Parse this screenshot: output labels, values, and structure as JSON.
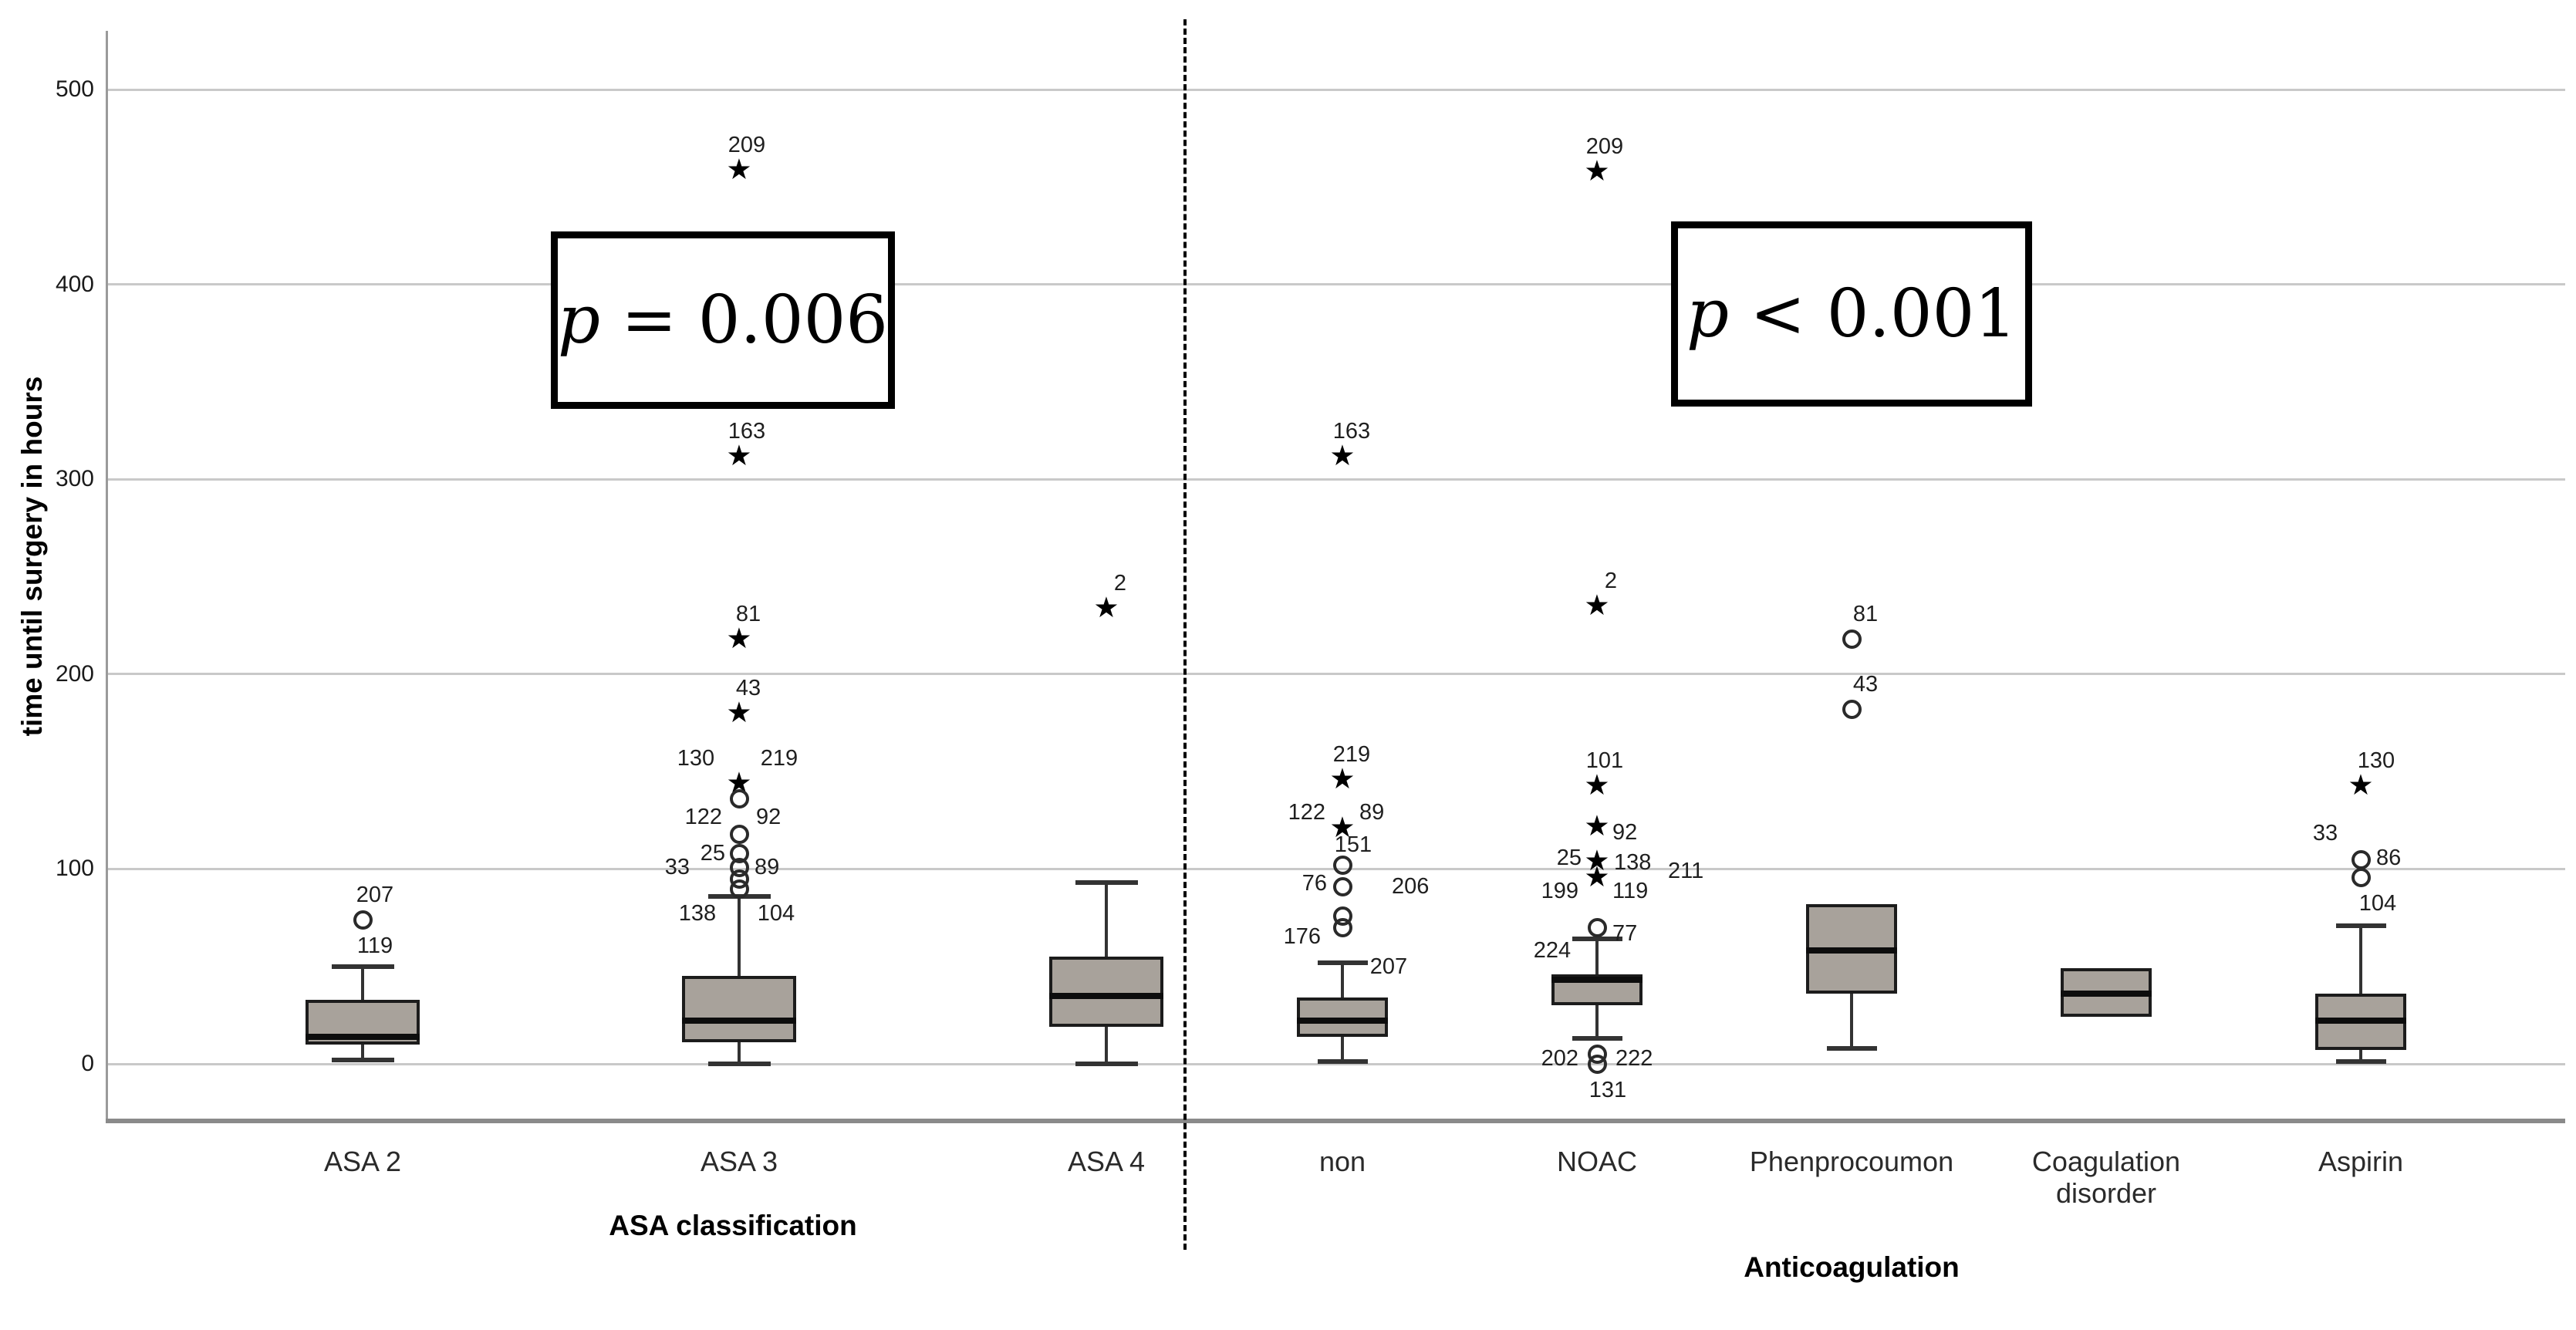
{
  "chart_data": {
    "type": "boxplot",
    "title": "",
    "ylabel": "time until surgery in hours",
    "y_ticks": [
      0,
      100,
      200,
      300,
      400,
      500
    ],
    "ylim": [
      -30,
      530
    ],
    "grid": "horizontal",
    "colors": {
      "box_fill": "#a8a29b",
      "gridline": "#c9c9c9",
      "marker": "#000000"
    },
    "panels": [
      {
        "axis_label": "ASA classification",
        "p_label": "p = 0.006",
        "categories": [
          {
            "label": "ASA 2",
            "box": {
              "whisker_low": 2,
              "q1": 10,
              "median": 14,
              "q3": 33,
              "whisker_high": 50
            },
            "outliers": [
              {
                "value": 74,
                "marker": "circle",
                "labels": [
                  {
                    "text": "207",
                    "pos": "above",
                    "dx": 16
                  },
                  {
                    "text": "119",
                    "pos": "below",
                    "dx": 16
                  }
                ]
              }
            ],
            "extra_labels": []
          },
          {
            "label": "ASA 3",
            "box": {
              "whisker_low": 0,
              "q1": 11,
              "median": 22,
              "q3": 45,
              "whisker_high": 86
            },
            "outliers": [
              {
                "value": 459,
                "marker": "star",
                "labels": [
                  {
                    "text": "209",
                    "pos": "above",
                    "dx": 10
                  }
                ]
              },
              {
                "value": 312,
                "marker": "star",
                "labels": [
                  {
                    "text": "163",
                    "pos": "above",
                    "dx": 10
                  }
                ]
              },
              {
                "value": 218,
                "marker": "star",
                "labels": [
                  {
                    "text": "81",
                    "pos": "above",
                    "dx": 12
                  }
                ]
              },
              {
                "value": 180,
                "marker": "star",
                "labels": [
                  {
                    "text": "43",
                    "pos": "above",
                    "dx": 12
                  }
                ]
              },
              {
                "value": 144,
                "marker": "star",
                "labels": [
                  {
                    "text": "130",
                    "pos": "above",
                    "dx": -56
                  },
                  {
                    "text": "219",
                    "pos": "above",
                    "dx": 52
                  }
                ]
              },
              {
                "value": 136,
                "marker": "circle",
                "labels": []
              },
              {
                "value": 118,
                "marker": "circle",
                "labels": [
                  {
                    "text": "122",
                    "pos": "left",
                    "dx": -2,
                    "dy": -22
                  },
                  {
                    "text": "92",
                    "pos": "right",
                    "dx": 2,
                    "dy": -22
                  }
                ]
              },
              {
                "value": 108,
                "marker": "circle",
                "labels": [
                  {
                    "text": "25",
                    "pos": "left",
                    "dx": 2
                  }
                ]
              },
              {
                "value": 101,
                "marker": "circle",
                "labels": [
                  {
                    "text": "33",
                    "pos": "left",
                    "dx": -44
                  },
                  {
                    "text": "89",
                    "pos": "right",
                    "dx": 0
                  }
                ]
              },
              {
                "value": 95,
                "marker": "circle",
                "labels": []
              },
              {
                "value": 90,
                "marker": "circle",
                "labels": []
              }
            ],
            "extra_labels": [
              {
                "text": "138",
                "value": 77,
                "dx": -54
              },
              {
                "text": "104",
                "value": 77,
                "dx": 48
              }
            ]
          },
          {
            "label": "ASA 4",
            "box": {
              "whisker_low": 0,
              "q1": 19,
              "median": 35,
              "q3": 55,
              "whisker_high": 93
            },
            "outliers": [
              {
                "value": 234,
                "marker": "star",
                "labels": [
                  {
                    "text": "2",
                    "pos": "above",
                    "dx": 18
                  }
                ]
              }
            ],
            "extra_labels": []
          }
        ]
      },
      {
        "axis_label": "Anticoagulation",
        "p_label": "p < 0.001",
        "categories": [
          {
            "label": "non",
            "box": {
              "whisker_low": 1,
              "q1": 14,
              "median": 22,
              "q3": 34,
              "whisker_high": 52
            },
            "outliers": [
              {
                "value": 312,
                "marker": "star",
                "labels": [
                  {
                    "text": "163",
                    "pos": "above",
                    "dx": 12
                  }
                ]
              },
              {
                "value": 146,
                "marker": "star",
                "labels": [
                  {
                    "text": "219",
                    "pos": "above",
                    "dx": 12
                  }
                ]
              },
              {
                "value": 121,
                "marker": "star",
                "labels": [
                  {
                    "text": "122",
                    "pos": "left",
                    "dx": -2,
                    "dy": -20
                  },
                  {
                    "text": "89",
                    "pos": "right",
                    "dx": 2,
                    "dy": -20
                  }
                ]
              },
              {
                "value": 102,
                "marker": "circle",
                "labels": [
                  {
                    "text": "151",
                    "pos": "above",
                    "dx": 14,
                    "dy": 6
                  }
                ]
              },
              {
                "value": 91,
                "marker": "circle",
                "labels": [
                  {
                    "text": "76",
                    "pos": "left",
                    "dx": 0,
                    "dy": -4
                  },
                  {
                    "text": "206",
                    "pos": "right",
                    "dx": 44
                  }
                ]
              },
              {
                "value": 76,
                "marker": "circle",
                "labels": []
              },
              {
                "value": 70,
                "marker": "circle",
                "labels": [
                  {
                    "text": "176",
                    "pos": "left",
                    "dx": -8,
                    "dy": 12
                  }
                ]
              }
            ],
            "extra_labels": [
              {
                "text": "207",
                "value": 50,
                "dx": 60
              }
            ]
          },
          {
            "label": "NOAC",
            "box": {
              "whisker_low": 13,
              "q1": 30,
              "median": 43,
              "q3": 46,
              "whisker_high": 64
            },
            "outliers": [
              {
                "value": 458,
                "marker": "star",
                "labels": [
                  {
                    "text": "209",
                    "pos": "above",
                    "dx": 10
                  }
                ]
              },
              {
                "value": 235,
                "marker": "star",
                "labels": [
                  {
                    "text": "2",
                    "pos": "above",
                    "dx": 18
                  }
                ]
              },
              {
                "value": 143,
                "marker": "star",
                "labels": [
                  {
                    "text": "101",
                    "pos": "above",
                    "dx": 10
                  }
                ]
              },
              {
                "value": 122,
                "marker": "star",
                "labels": [
                  {
                    "text": "92",
                    "pos": "right",
                    "dx": 0,
                    "dy": 8
                  }
                ]
              },
              {
                "value": 104,
                "marker": "star",
                "labels": [
                  {
                    "text": "25",
                    "pos": "left",
                    "dx": 0,
                    "dy": -4
                  },
                  {
                    "text": "138",
                    "pos": "right",
                    "dx": 2,
                    "dy": 2
                  }
                ]
              },
              {
                "value": 96,
                "marker": "star",
                "labels": [
                  {
                    "text": "199",
                    "pos": "left",
                    "dx": -4,
                    "dy": 18
                  },
                  {
                    "text": "119",
                    "pos": "right",
                    "dx": 0,
                    "dy": 18
                  },
                  {
                    "text": "211",
                    "pos": "right",
                    "dx": 72,
                    "dy": -8
                  }
                ]
              },
              {
                "value": 70,
                "marker": "circle",
                "labels": [
                  {
                    "text": "77",
                    "pos": "right",
                    "dx": 0,
                    "dy": 8
                  }
                ]
              },
              {
                "value": 5,
                "marker": "circle",
                "labels": [
                  {
                    "text": "202",
                    "pos": "left",
                    "dx": -4,
                    "dy": 6
                  },
                  {
                    "text": "222",
                    "pos": "right",
                    "dx": 4,
                    "dy": 6
                  }
                ]
              },
              {
                "value": 0,
                "marker": "circle",
                "labels": [
                  {
                    "text": "131",
                    "pos": "below",
                    "dx": 14
                  }
                ]
              }
            ],
            "extra_labels": [
              {
                "text": "224",
                "value": 58,
                "dx": -58
              }
            ]
          },
          {
            "label": "Phenprocoumon",
            "box": {
              "whisker_low": 8,
              "q1": 36,
              "median": 58,
              "q3": 82,
              "whisker_high": null
            },
            "outliers": [
              {
                "value": 218,
                "marker": "circle",
                "labels": [
                  {
                    "text": "81",
                    "pos": "above",
                    "dx": 18
                  }
                ]
              },
              {
                "value": 182,
                "marker": "circle",
                "labels": [
                  {
                    "text": "43",
                    "pos": "above",
                    "dx": 18
                  }
                ]
              }
            ],
            "extra_labels": []
          },
          {
            "label": "Coagulation\ndisorder",
            "box": {
              "whisker_low": null,
              "q1": 24,
              "median": 36,
              "q3": 49,
              "whisker_high": null
            },
            "outliers": [],
            "extra_labels": []
          },
          {
            "label": "Aspirin",
            "box": {
              "whisker_low": 1,
              "q1": 7,
              "median": 22,
              "q3": 36,
              "whisker_high": 71
            },
            "outliers": [
              {
                "value": 143,
                "marker": "star",
                "labels": [
                  {
                    "text": "130",
                    "pos": "above",
                    "dx": 20
                  }
                ]
              },
              {
                "value": 105,
                "marker": "circle",
                "labels": [
                  {
                    "text": "33",
                    "pos": "above",
                    "dx": -46,
                    "dy": -2
                  },
                  {
                    "text": "86",
                    "pos": "right",
                    "dx": 0,
                    "dy": -2
                  }
                ]
              },
              {
                "value": 96,
                "marker": "circle",
                "labels": [
                  {
                    "text": "104",
                    "pos": "below",
                    "dx": 22
                  }
                ]
              }
            ],
            "extra_labels": []
          }
        ]
      }
    ]
  }
}
